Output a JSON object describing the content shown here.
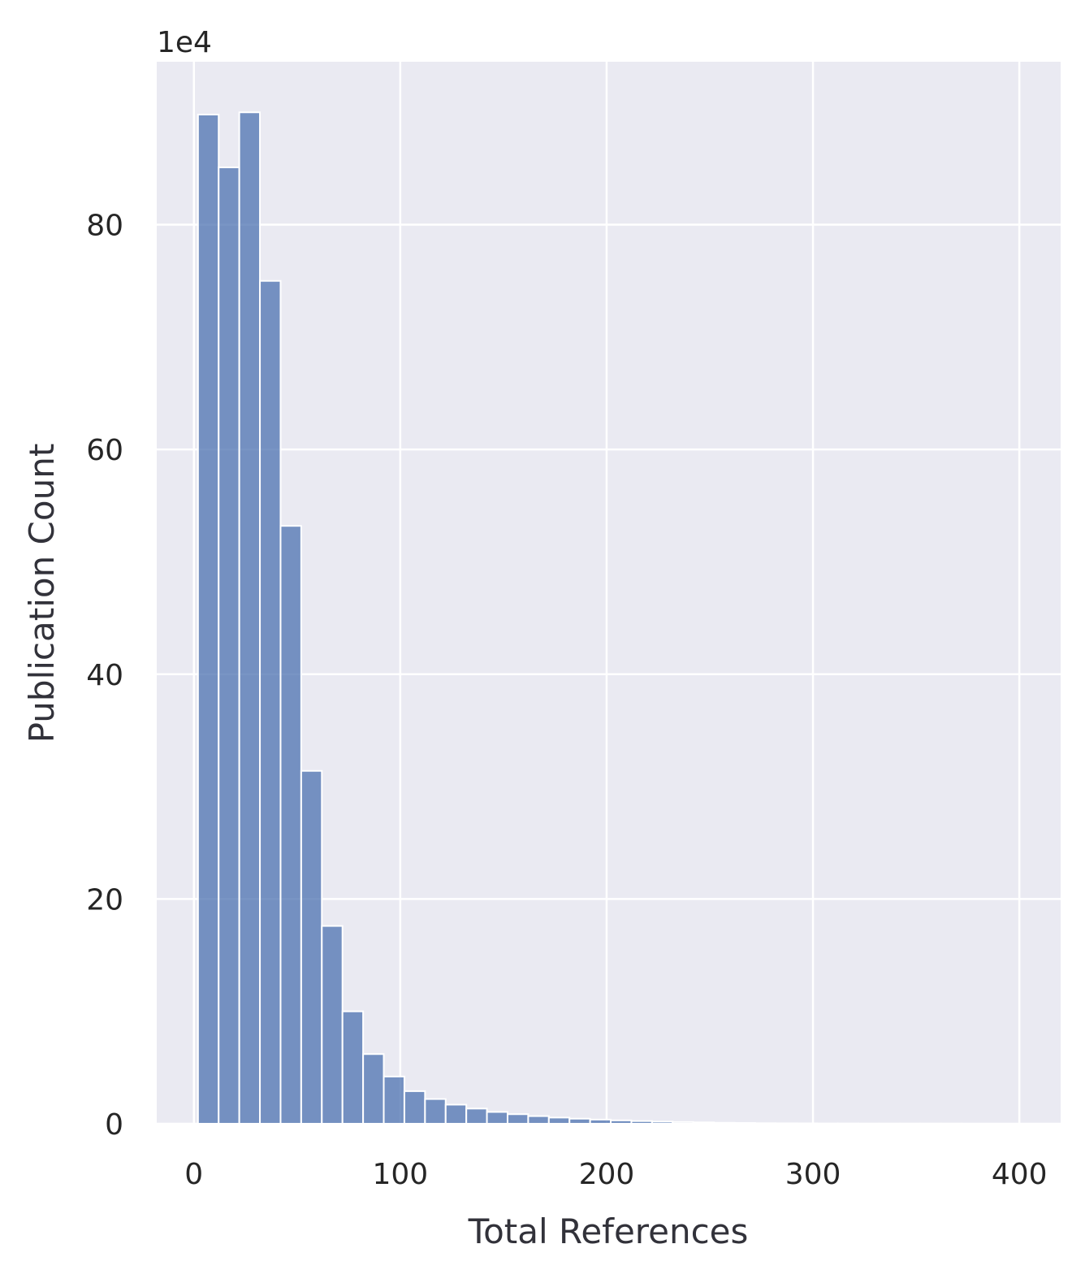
{
  "chart_data": {
    "type": "bar",
    "variant": "histogram",
    "xlabel": "Total References",
    "ylabel": "Publication Count",
    "y_offset_label": "1e4",
    "xlim": [
      -18,
      420
    ],
    "ylim": [
      0,
      94.5
    ],
    "xticks": [
      0,
      100,
      200,
      300,
      400
    ],
    "yticks": [
      0,
      20,
      40,
      60,
      80
    ],
    "grid": true,
    "bar_color": "#4c72b0",
    "background_color": "#eaeaf2",
    "bin_width": 10,
    "bins": [
      {
        "start": 2,
        "value": 89.8
      },
      {
        "start": 12,
        "value": 85.1
      },
      {
        "start": 22,
        "value": 90.0
      },
      {
        "start": 32,
        "value": 75.0
      },
      {
        "start": 42,
        "value": 53.2
      },
      {
        "start": 52,
        "value": 31.4
      },
      {
        "start": 62,
        "value": 17.6
      },
      {
        "start": 72,
        "value": 10.0
      },
      {
        "start": 82,
        "value": 6.2
      },
      {
        "start": 92,
        "value": 4.2
      },
      {
        "start": 102,
        "value": 2.9
      },
      {
        "start": 112,
        "value": 2.2
      },
      {
        "start": 122,
        "value": 1.7
      },
      {
        "start": 132,
        "value": 1.35
      },
      {
        "start": 142,
        "value": 1.05
      },
      {
        "start": 152,
        "value": 0.85
      },
      {
        "start": 162,
        "value": 0.68
      },
      {
        "start": 172,
        "value": 0.55
      },
      {
        "start": 182,
        "value": 0.45
      },
      {
        "start": 192,
        "value": 0.37
      },
      {
        "start": 202,
        "value": 0.3
      },
      {
        "start": 212,
        "value": 0.24
      },
      {
        "start": 222,
        "value": 0.19
      },
      {
        "start": 232,
        "value": 0.15
      },
      {
        "start": 242,
        "value": 0.12
      },
      {
        "start": 252,
        "value": 0.09
      },
      {
        "start": 262,
        "value": 0.07
      },
      {
        "start": 272,
        "value": 0.05
      },
      {
        "start": 282,
        "value": 0.04
      },
      {
        "start": 292,
        "value": 0.03
      },
      {
        "start": 302,
        "value": 0.02
      },
      {
        "start": 312,
        "value": 0.02
      },
      {
        "start": 322,
        "value": 0.01
      },
      {
        "start": 332,
        "value": 0.01
      },
      {
        "start": 342,
        "value": 0.01
      },
      {
        "start": 352,
        "value": 0.01
      },
      {
        "start": 362,
        "value": 0.01
      },
      {
        "start": 372,
        "value": 0.005
      },
      {
        "start": 382,
        "value": 0.005
      },
      {
        "start": 392,
        "value": 0.005
      }
    ]
  }
}
